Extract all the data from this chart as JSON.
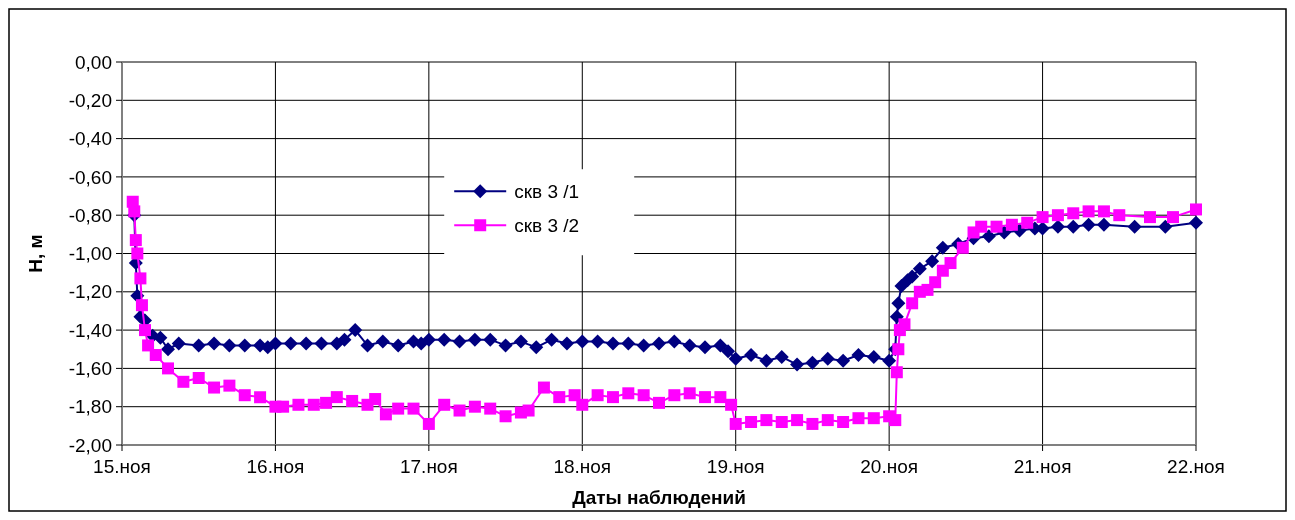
{
  "chart_data": {
    "type": "line",
    "xlabel": "Даты наблюдений",
    "ylabel": "H, м",
    "xlim": [
      15,
      22
    ],
    "xticks": [
      {
        "value": 15,
        "label": "15.ноя"
      },
      {
        "value": 16,
        "label": "16.ноя"
      },
      {
        "value": 17,
        "label": "17.ноя"
      },
      {
        "value": 18,
        "label": "18.ноя"
      },
      {
        "value": 19,
        "label": "19.ноя"
      },
      {
        "value": 20,
        "label": "20.ноя"
      },
      {
        "value": 21,
        "label": "21.ноя"
      },
      {
        "value": 22,
        "label": "22.ноя"
      }
    ],
    "ylim": [
      -2,
      0
    ],
    "yticks": [
      {
        "value": 0,
        "label": "0,00"
      },
      {
        "value": -0.2,
        "label": "-0,20"
      },
      {
        "value": -0.4,
        "label": "-0,40"
      },
      {
        "value": -0.6,
        "label": "-0,60"
      },
      {
        "value": -0.8,
        "label": "-0,80"
      },
      {
        "value": -1,
        "label": "-1,00"
      },
      {
        "value": -1.2,
        "label": "-1,20"
      },
      {
        "value": -1.4,
        "label": "-1,40"
      },
      {
        "value": -1.6,
        "label": "-1,60"
      },
      {
        "value": -1.8,
        "label": "-1,80"
      },
      {
        "value": -2,
        "label": "-2,00"
      }
    ],
    "grid": true,
    "legend": "top",
    "series": [
      {
        "name": "скв 3 /1",
        "color": "#000080",
        "marker": "diamond",
        "x": [
          15.08,
          15.09,
          15.1,
          15.12,
          15.15,
          15.2,
          15.25,
          15.3,
          15.37,
          15.5,
          15.6,
          15.7,
          15.8,
          15.9,
          15.95,
          16.0,
          16.1,
          16.2,
          16.3,
          16.4,
          16.45,
          16.52,
          16.6,
          16.7,
          16.8,
          16.9,
          16.95,
          17.0,
          17.1,
          17.2,
          17.3,
          17.4,
          17.5,
          17.6,
          17.7,
          17.8,
          17.9,
          18.0,
          18.1,
          18.2,
          18.3,
          18.4,
          18.5,
          18.6,
          18.7,
          18.8,
          18.9,
          18.95,
          19.0,
          19.1,
          19.2,
          19.3,
          19.4,
          19.5,
          19.6,
          19.7,
          19.8,
          19.9,
          20.0,
          20.04,
          20.05,
          20.06,
          20.08,
          20.12,
          20.15,
          20.2,
          20.28,
          20.35,
          20.45,
          20.55,
          20.65,
          20.75,
          20.85,
          20.95,
          21.0,
          21.1,
          21.2,
          21.3,
          21.4,
          21.6,
          21.8,
          22.0
        ],
        "values": [
          -0.8,
          -1.05,
          -1.22,
          -1.33,
          -1.35,
          -1.43,
          -1.44,
          -1.5,
          -1.47,
          -1.48,
          -1.47,
          -1.48,
          -1.48,
          -1.48,
          -1.49,
          -1.47,
          -1.47,
          -1.47,
          -1.47,
          -1.47,
          -1.45,
          -1.4,
          -1.48,
          -1.46,
          -1.48,
          -1.46,
          -1.47,
          -1.45,
          -1.45,
          -1.46,
          -1.45,
          -1.45,
          -1.48,
          -1.46,
          -1.49,
          -1.45,
          -1.47,
          -1.46,
          -1.46,
          -1.47,
          -1.47,
          -1.48,
          -1.47,
          -1.46,
          -1.48,
          -1.49,
          -1.48,
          -1.51,
          -1.55,
          -1.53,
          -1.56,
          -1.54,
          -1.58,
          -1.57,
          -1.55,
          -1.56,
          -1.53,
          -1.54,
          -1.56,
          -1.5,
          -1.33,
          -1.26,
          -1.17,
          -1.14,
          -1.12,
          -1.08,
          -1.04,
          -0.97,
          -0.95,
          -0.92,
          -0.91,
          -0.89,
          -0.88,
          -0.87,
          -0.87,
          -0.86,
          -0.86,
          -0.85,
          -0.85,
          -0.86,
          -0.86,
          -0.84
        ]
      },
      {
        "name": "скв 3 /2",
        "color": "#ff00ff",
        "marker": "square",
        "x": [
          15.07,
          15.08,
          15.09,
          15.1,
          15.12,
          15.13,
          15.15,
          15.17,
          15.22,
          15.3,
          15.4,
          15.5,
          15.6,
          15.7,
          15.8,
          15.9,
          16.0,
          16.05,
          16.15,
          16.25,
          16.33,
          16.4,
          16.5,
          16.6,
          16.65,
          16.72,
          16.8,
          16.9,
          17.0,
          17.1,
          17.2,
          17.3,
          17.4,
          17.5,
          17.6,
          17.65,
          17.75,
          17.85,
          17.95,
          18.0,
          18.1,
          18.2,
          18.3,
          18.4,
          18.5,
          18.6,
          18.7,
          18.8,
          18.9,
          18.97,
          19.0,
          19.1,
          19.2,
          19.3,
          19.4,
          19.5,
          19.6,
          19.7,
          19.8,
          19.9,
          20.0,
          20.04,
          20.05,
          20.06,
          20.07,
          20.1,
          20.15,
          20.2,
          20.25,
          20.3,
          20.35,
          20.4,
          20.48,
          20.55,
          20.6,
          20.7,
          20.8,
          20.9,
          21.0,
          21.1,
          21.2,
          21.3,
          21.4,
          21.5,
          21.7,
          21.85,
          22.0
        ],
        "values": [
          -0.73,
          -0.78,
          -0.93,
          -1.0,
          -1.13,
          -1.27,
          -1.4,
          -1.48,
          -1.53,
          -1.6,
          -1.67,
          -1.65,
          -1.7,
          -1.69,
          -1.74,
          -1.75,
          -1.8,
          -1.8,
          -1.79,
          -1.79,
          -1.78,
          -1.75,
          -1.77,
          -1.79,
          -1.76,
          -1.84,
          -1.81,
          -1.81,
          -1.89,
          -1.79,
          -1.82,
          -1.8,
          -1.81,
          -1.85,
          -1.83,
          -1.82,
          -1.7,
          -1.75,
          -1.74,
          -1.79,
          -1.74,
          -1.75,
          -1.73,
          -1.74,
          -1.78,
          -1.74,
          -1.73,
          -1.75,
          -1.75,
          -1.79,
          -1.89,
          -1.88,
          -1.87,
          -1.88,
          -1.87,
          -1.89,
          -1.87,
          -1.88,
          -1.86,
          -1.86,
          -1.85,
          -1.87,
          -1.62,
          -1.5,
          -1.4,
          -1.37,
          -1.26,
          -1.2,
          -1.19,
          -1.15,
          -1.09,
          -1.05,
          -0.97,
          -0.89,
          -0.86,
          -0.86,
          -0.85,
          -0.84,
          -0.81,
          -0.8,
          -0.79,
          -0.78,
          -0.78,
          -0.8,
          -0.81,
          -0.81,
          -0.77
        ]
      }
    ]
  }
}
